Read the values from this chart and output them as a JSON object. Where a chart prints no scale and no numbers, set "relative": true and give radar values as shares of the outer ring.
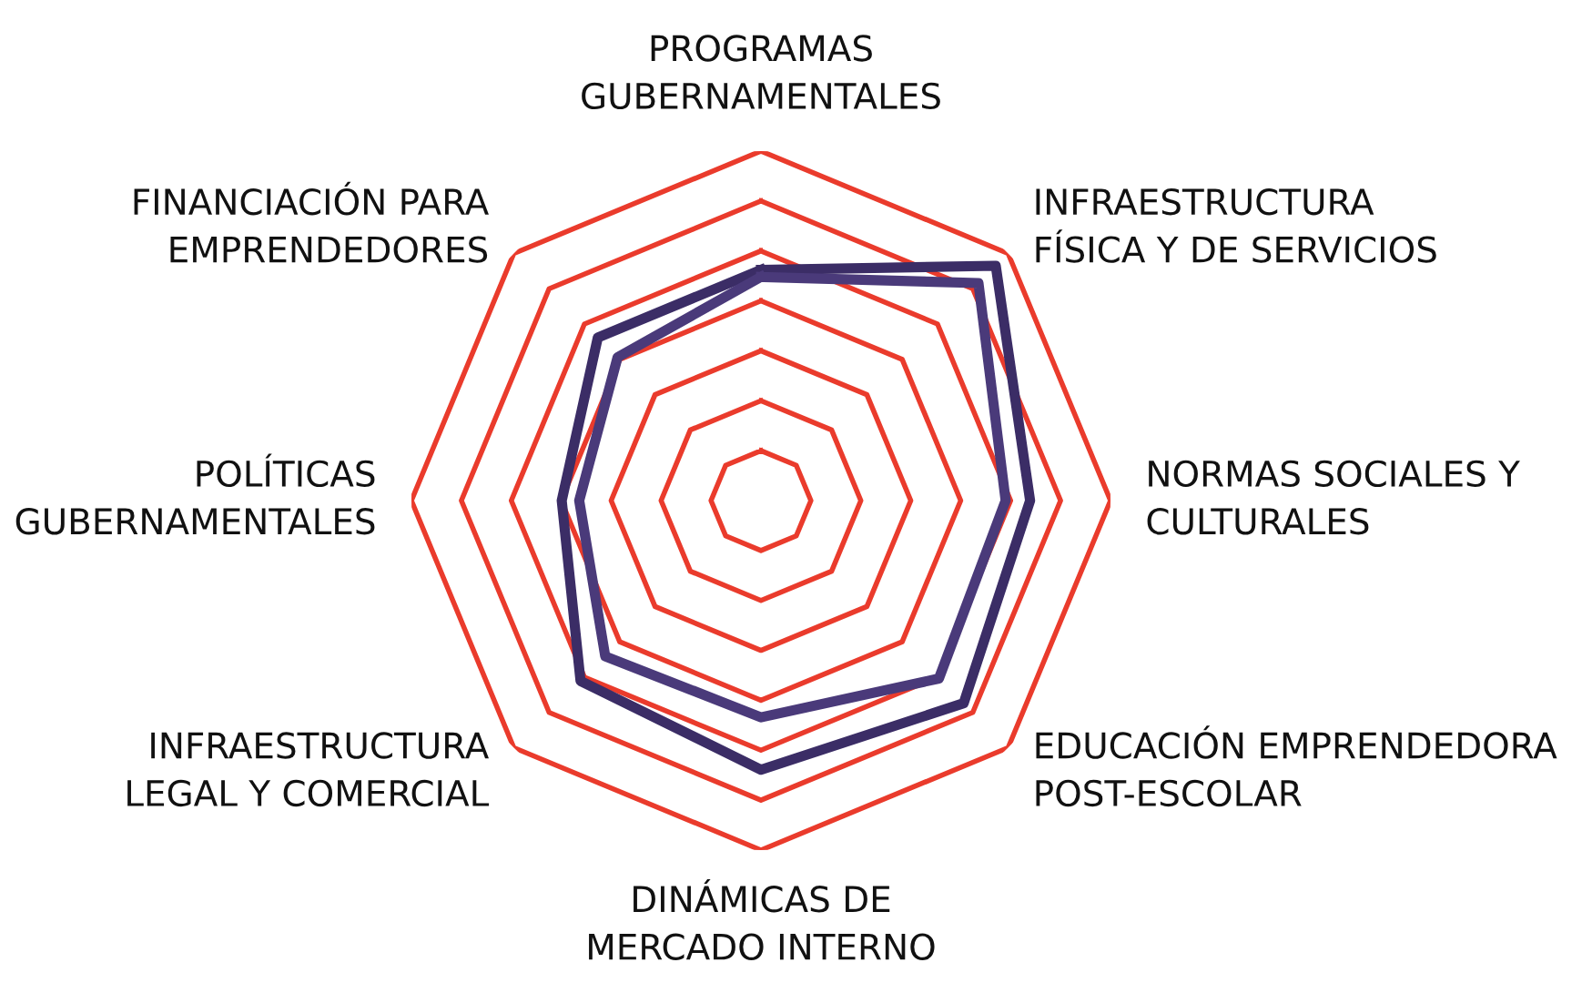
{
  "chart_data": {
    "type": "radar",
    "relative": true,
    "grid": true,
    "line_style": "solid",
    "categories": [
      "PROGRAMAS\nGUBERNAMENTALES",
      "INFRAESTRUCTURA\nFÍSICA Y DE SERVICIOS",
      "NORMAS SOCIALES Y\nCULTURALES",
      "EDUCACIÓN EMPRENDEDORA\nPOST-ESCOLAR",
      "DINÁMICAS DE\nMERCADO INTERNO",
      "INFRAESTRUCTURA\nLEGAL Y COMERCIAL",
      "POLÍTICAS\nGUBERNAMENTALES",
      "FINANCIACIÓN PARA\nEMPRENDEDORES"
    ],
    "series": [
      {
        "color": "#3b2d66",
        "values": [
          0.66,
          0.95,
          0.77,
          0.82,
          0.77,
          0.73,
          0.57,
          0.66
        ]
      },
      {
        "color": "#4a3a7a",
        "values": [
          0.64,
          0.88,
          0.7,
          0.72,
          0.62,
          0.63,
          0.52,
          0.58
        ]
      }
    ]
  }
}
